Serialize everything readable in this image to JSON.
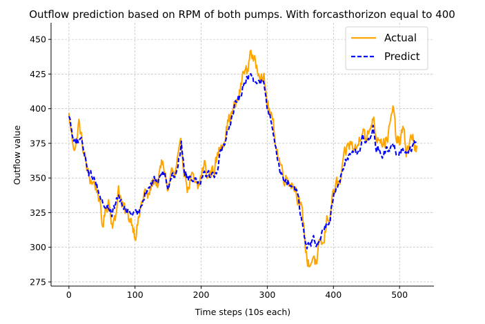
{
  "chart_data": {
    "type": "line",
    "title": "Outflow prediction based on RPM of both pumps. With forcasthorizon equal to 400",
    "xlabel": "Time steps (10s each)",
    "ylabel": "Outflow value",
    "xlim": [
      -27,
      552
    ],
    "ylim": [
      272,
      462
    ],
    "xticks": [
      0,
      100,
      200,
      300,
      400,
      500
    ],
    "yticks": [
      275,
      300,
      325,
      350,
      375,
      400,
      425,
      450
    ],
    "grid": true,
    "legend_position": "top-right",
    "n_points": 527,
    "series": [
      {
        "name": "Actual",
        "color": "#ffa500",
        "style": "solid",
        "anchors_x": [
          0,
          5,
          10,
          15,
          20,
          25,
          30,
          35,
          40,
          45,
          50,
          55,
          60,
          65,
          70,
          75,
          80,
          85,
          90,
          95,
          100,
          105,
          110,
          115,
          120,
          125,
          130,
          135,
          140,
          145,
          150,
          155,
          160,
          165,
          170,
          175,
          180,
          185,
          190,
          195,
          200,
          205,
          210,
          215,
          220,
          225,
          230,
          235,
          240,
          245,
          250,
          255,
          260,
          265,
          270,
          275,
          280,
          285,
          290,
          295,
          300,
          305,
          310,
          315,
          320,
          325,
          330,
          335,
          340,
          345,
          350,
          355,
          360,
          365,
          370,
          375,
          380,
          385,
          390,
          395,
          400,
          405,
          410,
          415,
          420,
          425,
          430,
          435,
          440,
          445,
          450,
          455,
          460,
          465,
          470,
          475,
          480,
          485,
          490,
          495,
          500,
          505,
          510,
          515,
          520,
          525
        ],
        "anchors_y": [
          395,
          378,
          372,
          390,
          375,
          362,
          350,
          348,
          345,
          338,
          315,
          325,
          335,
          320,
          318,
          345,
          330,
          325,
          322,
          320,
          310,
          318,
          332,
          340,
          335,
          345,
          350,
          345,
          360,
          355,
          340,
          355,
          350,
          362,
          372,
          355,
          342,
          350,
          345,
          340,
          352,
          360,
          350,
          355,
          358,
          365,
          375,
          380,
          390,
          395,
          400,
          405,
          415,
          430,
          425,
          445,
          432,
          430,
          428,
          420,
          405,
          395,
          385,
          370,
          360,
          352,
          350,
          348,
          345,
          340,
          330,
          315,
          290,
          288,
          295,
          285,
          305,
          300,
          320,
          325,
          340,
          345,
          345,
          360,
          370,
          375,
          372,
          370,
          380,
          390,
          375,
          385,
          395,
          380,
          382,
          375,
          378,
          385,
          400,
          378,
          375,
          385,
          370,
          375,
          380,
          370
        ],
        "noise": 4.5
      },
      {
        "name": "Predict",
        "color": "#0000ff",
        "style": "dashed",
        "anchors_x": [
          0,
          5,
          10,
          15,
          20,
          25,
          30,
          35,
          40,
          45,
          50,
          55,
          60,
          65,
          70,
          75,
          80,
          85,
          90,
          95,
          100,
          105,
          110,
          115,
          120,
          125,
          130,
          135,
          140,
          145,
          150,
          155,
          160,
          165,
          170,
          175,
          180,
          185,
          190,
          195,
          200,
          205,
          210,
          215,
          220,
          225,
          230,
          235,
          240,
          245,
          250,
          255,
          260,
          265,
          270,
          275,
          280,
          285,
          290,
          295,
          300,
          305,
          310,
          315,
          320,
          325,
          330,
          335,
          340,
          345,
          350,
          355,
          360,
          365,
          370,
          375,
          380,
          385,
          390,
          395,
          400,
          405,
          410,
          415,
          420,
          425,
          430,
          435,
          440,
          445,
          450,
          455,
          460,
          465,
          470,
          475,
          480,
          485,
          490,
          495,
          500,
          505,
          510,
          515,
          520,
          525
        ],
        "anchors_y": [
          397,
          382,
          378,
          376,
          375,
          365,
          355,
          352,
          350,
          340,
          333,
          330,
          328,
          325,
          330,
          338,
          330,
          328,
          326,
          325,
          322,
          325,
          332,
          340,
          343,
          346,
          348,
          348,
          355,
          352,
          345,
          352,
          352,
          360,
          375,
          355,
          350,
          351,
          350,
          348,
          350,
          355,
          354,
          352,
          352,
          358,
          370,
          375,
          385,
          392,
          400,
          404,
          412,
          420,
          422,
          425,
          420,
          422,
          420,
          418,
          400,
          392,
          380,
          365,
          355,
          350,
          347,
          345,
          344,
          340,
          325,
          310,
          300,
          302,
          305,
          300,
          308,
          312,
          318,
          320,
          338,
          345,
          350,
          355,
          365,
          368,
          370,
          368,
          372,
          380,
          375,
          378,
          385,
          372,
          370,
          368,
          370,
          368,
          375,
          370,
          368,
          372,
          370,
          372,
          372,
          375
        ],
        "noise": 2.5
      }
    ]
  }
}
